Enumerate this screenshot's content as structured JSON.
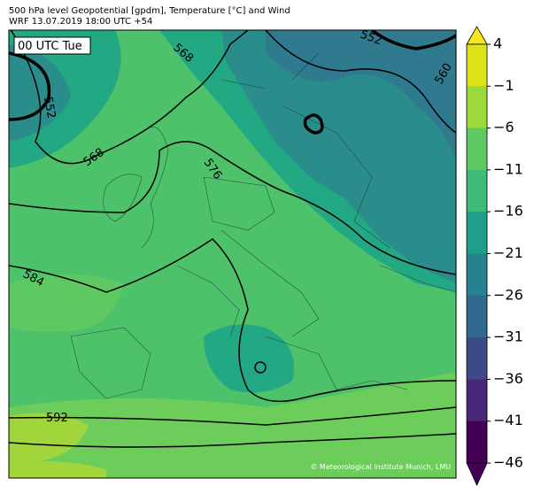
{
  "header": {
    "line1": "500 hPa level Geopotential [gpdm], Temperature [°C] and Wind",
    "line2": "WRF 13.07.2019 18:00 UTC +54"
  },
  "map": {
    "time_label": "00 UTC Tue",
    "contour_labels": [
      "552",
      "568",
      "568",
      "576",
      "584",
      "592",
      "552",
      "560"
    ],
    "credit": "© Meteorological Institute Munich, LMU"
  },
  "colorbar": {
    "ticks": [
      "4",
      "−1",
      "−6",
      "−11",
      "−16",
      "−21",
      "−26",
      "−31",
      "−36",
      "−41",
      "−46"
    ]
  }
}
